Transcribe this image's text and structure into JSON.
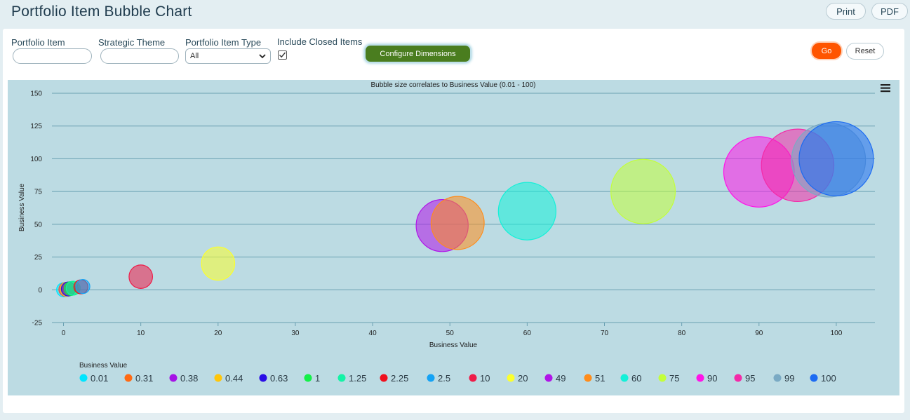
{
  "header": {
    "title": "Portfolio Item Bubble Chart",
    "print_label": "Print",
    "pdf_label": "PDF"
  },
  "filters": {
    "portfolio_item_label": "Portfolio Item",
    "portfolio_item_value": "",
    "strategic_theme_label": "Strategic Theme",
    "strategic_theme_value": "",
    "item_type_label": "Portfolio Item Type",
    "item_type_value": "All",
    "include_closed_label": "Include Closed Items",
    "include_closed_checked": true,
    "configure_label": "Configure Dimensions",
    "go_label": "Go",
    "reset_label": "Reset"
  },
  "chart_data": {
    "type": "scatter",
    "title": "Bubble size correlates to Business Value (0.01 - 100)",
    "xlabel": "Business Value",
    "ylabel": "Business Value",
    "xlim": [
      -1.5,
      105
    ],
    "ylim": [
      -25,
      150
    ],
    "x_ticks": [
      0,
      10,
      20,
      30,
      40,
      50,
      60,
      70,
      80,
      90,
      100
    ],
    "y_ticks": [
      -25,
      0,
      25,
      50,
      75,
      100,
      125,
      150
    ],
    "grid": "horizontal",
    "legend_title": "Business Value",
    "legend_position": "bottom-left",
    "series": [
      {
        "name": "0.01",
        "color": "#00e5ff",
        "x": 0.01,
        "y": 0.01,
        "size": 0.01
      },
      {
        "name": "0.31",
        "color": "#ff6a13",
        "x": 0.31,
        "y": 0.31,
        "size": 0.31
      },
      {
        "name": "0.38",
        "color": "#a513e6",
        "x": 0.38,
        "y": 0.38,
        "size": 0.38
      },
      {
        "name": "0.44",
        "color": "#ffc60a",
        "x": 0.44,
        "y": 0.44,
        "size": 0.44
      },
      {
        "name": "0.63",
        "color": "#2a0ee6",
        "x": 0.63,
        "y": 0.63,
        "size": 0.63
      },
      {
        "name": "1",
        "color": "#14f048",
        "x": 1,
        "y": 1,
        "size": 1
      },
      {
        "name": "1.25",
        "color": "#14f3a6",
        "x": 1.25,
        "y": 1.25,
        "size": 1.25
      },
      {
        "name": "2.25",
        "color": "#f0101e",
        "x": 2.25,
        "y": 2.25,
        "size": 2.25
      },
      {
        "name": "2.5",
        "color": "#14a3f5",
        "x": 2.5,
        "y": 2.5,
        "size": 2.5
      },
      {
        "name": "10",
        "color": "#ee1c48",
        "x": 10,
        "y": 10,
        "size": 10
      },
      {
        "name": "20",
        "color": "#fbff2e",
        "x": 20,
        "y": 20,
        "size": 20
      },
      {
        "name": "49",
        "color": "#b014e8",
        "x": 49,
        "y": 49,
        "size": 49
      },
      {
        "name": "51",
        "color": "#ff8c1a",
        "x": 51,
        "y": 51,
        "size": 51
      },
      {
        "name": "60",
        "color": "#14f0d8",
        "x": 60,
        "y": 60,
        "size": 60
      },
      {
        "name": "75",
        "color": "#c3ff3a",
        "x": 75,
        "y": 75,
        "size": 75
      },
      {
        "name": "90",
        "color": "#ff14e8",
        "x": 90,
        "y": 90,
        "size": 90
      },
      {
        "name": "95",
        "color": "#f42aa8",
        "x": 95,
        "y": 95,
        "size": 95
      },
      {
        "name": "99",
        "color": "#7aaac4",
        "x": 99,
        "y": 99,
        "size": 99
      },
      {
        "name": "100",
        "color": "#1c6bf2",
        "x": 100,
        "y": 100,
        "size": 100
      }
    ]
  }
}
